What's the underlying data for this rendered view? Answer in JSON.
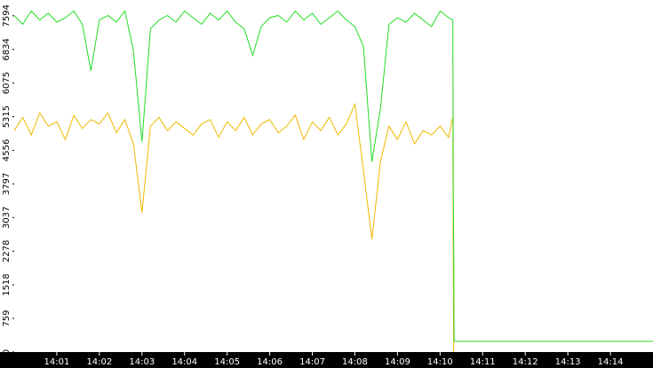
{
  "chart_data": {
    "type": "line",
    "x": [
      840,
      840.2,
      840.4,
      840.6,
      840.8,
      841,
      841.2,
      841.4,
      841.6,
      841.8,
      842,
      842.2,
      842.4,
      842.6,
      842.8,
      843,
      843.2,
      843.4,
      843.6,
      843.8,
      844,
      844.2,
      844.4,
      844.6,
      844.8,
      845,
      845.2,
      845.4,
      845.6,
      845.8,
      846,
      846.2,
      846.4,
      846.6,
      846.8,
      847,
      847.2,
      847.4,
      847.6,
      847.8,
      848,
      848.2,
      848.4,
      848.6,
      848.8,
      849,
      849.2,
      849.4,
      849.6,
      849.8,
      850,
      850.2,
      850.3,
      850.31,
      850.32,
      850.33,
      855
    ],
    "series": [
      {
        "color": "#22dd22",
        "values": [
          7600,
          7400,
          7700,
          7500,
          7650,
          7450,
          7550,
          7700,
          7400,
          6350,
          7500,
          7600,
          7450,
          7700,
          6800,
          4750,
          7300,
          7500,
          7600,
          7450,
          7700,
          7550,
          7400,
          7650,
          7500,
          7700,
          7450,
          7300,
          6700,
          7350,
          7550,
          7600,
          7450,
          7700,
          7500,
          7650,
          7400,
          7550,
          7700,
          7500,
          7350,
          6900,
          4300,
          5500,
          7400,
          7550,
          7450,
          7650,
          7500,
          7350,
          7700,
          7550,
          7500,
          3700,
          2440,
          240,
          240
        ]
      },
      {
        "color": "#f0b800",
        "values": [
          5000,
          5300,
          4900,
          5400,
          5100,
          5200,
          4800,
          5350,
          5050,
          5250,
          5150,
          5400,
          4950,
          5250,
          4700,
          3150,
          5100,
          5300,
          5000,
          5200,
          5050,
          4900,
          5150,
          5250,
          4850,
          5200,
          5000,
          5300,
          4900,
          5150,
          5250,
          4950,
          5100,
          5350,
          4800,
          5200,
          5000,
          5300,
          4900,
          5150,
          5600,
          4100,
          2550,
          4300,
          5100,
          4800,
          5200,
          4700,
          5000,
          4900,
          5100,
          4850,
          5300,
          2000,
          0,
          null,
          null
        ]
      }
    ],
    "xlim": [
      840,
      855
    ],
    "xticks": [
      {
        "value": 841,
        "label": "14:01"
      },
      {
        "value": 842,
        "label": "14:02"
      },
      {
        "value": 843,
        "label": "14:03"
      },
      {
        "value": 844,
        "label": "14:04"
      },
      {
        "value": 845,
        "label": "14:05"
      },
      {
        "value": 846,
        "label": "14:06"
      },
      {
        "value": 847,
        "label": "14:07"
      },
      {
        "value": 848,
        "label": "14:08"
      },
      {
        "value": 849,
        "label": "14:09"
      },
      {
        "value": 850,
        "label": "14:10"
      },
      {
        "value": 851,
        "label": "14:11"
      },
      {
        "value": 852,
        "label": "14:12"
      },
      {
        "value": 853,
        "label": "14:13"
      },
      {
        "value": 854,
        "label": "14:14"
      }
    ],
    "ylim": [
      0,
      7950
    ],
    "yticks": [
      0,
      759,
      1518,
      2278,
      3037,
      3797,
      4556,
      5315,
      6075,
      6834,
      7594
    ]
  }
}
